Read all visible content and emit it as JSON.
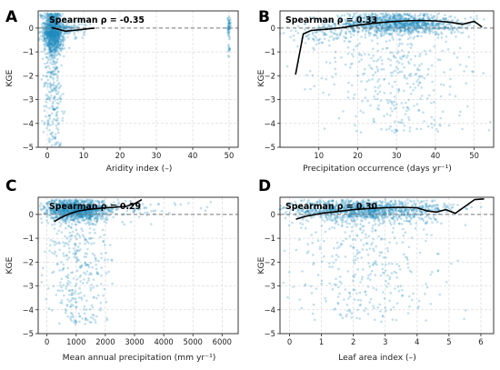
{
  "colors": {
    "points": "#1f8bbf",
    "trend": "#000000",
    "zero_line": "#777777",
    "grid": "#d9d9d9"
  },
  "chart_data": [
    {
      "panel": "A",
      "type": "scatter",
      "annotation": "Spearman ρ = -0.35",
      "xlabel": "Aridity index (–)",
      "ylabel": "KGE",
      "xlim": [
        -2.5,
        52.5
      ],
      "ylim": [
        -5,
        0.72
      ],
      "xticks": [
        0,
        10,
        20,
        30,
        40,
        50
      ],
      "yticks": [
        -5,
        -4,
        -3,
        -2,
        -1,
        0
      ],
      "grid": true,
      "reference_line_y": 0,
      "trend_x": [
        1.2,
        3,
        5,
        7,
        9,
        11,
        13
      ],
      "trend_y": [
        0.02,
        -0.05,
        -0.13,
        -0.1,
        -0.07,
        -0.03,
        0.0
      ],
      "point_clusters": [
        {
          "x_mean": 1.5,
          "x_sd": 1.3,
          "y_center": -0.15,
          "y_spread": 0.9,
          "tail": 4.8,
          "count": 1200
        },
        {
          "x_mean": 5,
          "x_sd": 2.5,
          "y_center": 0.05,
          "y_spread": 0.3,
          "tail": 0.6,
          "count": 140
        },
        {
          "x_mean": 50,
          "x_sd": 0.2,
          "y_center": 0.1,
          "y_spread": 0.4,
          "tail": 1.6,
          "count": 60
        }
      ]
    },
    {
      "panel": "B",
      "type": "scatter",
      "annotation": "Spearman ρ = 0.33",
      "xlabel": "Precipitation occurrence (days yr⁻¹)",
      "ylabel": "KGE",
      "xlim": [
        0,
        55
      ],
      "ylim": [
        -5,
        0.72
      ],
      "xticks": [
        10,
        20,
        30,
        40,
        50
      ],
      "yticks": [
        -5,
        -4,
        -3,
        -2,
        -1,
        0
      ],
      "grid": true,
      "reference_line_y": 0,
      "trend_x": [
        4,
        6,
        8,
        12,
        16,
        20,
        24,
        28,
        32,
        36,
        40,
        44,
        47,
        50,
        52
      ],
      "trend_y": [
        -1.95,
        -0.25,
        -0.1,
        -0.05,
        0.02,
        0.12,
        0.2,
        0.26,
        0.3,
        0.32,
        0.3,
        0.24,
        0.16,
        0.28,
        0.05
      ],
      "point_clusters": [
        {
          "x_mean": 30,
          "x_sd": 8,
          "y_center": 0.2,
          "y_spread": 0.45,
          "tail": 4.6,
          "count": 1400
        },
        {
          "x_mean": 10,
          "x_sd": 4,
          "y_center": -0.2,
          "y_spread": 0.5,
          "tail": 2.5,
          "count": 120
        }
      ]
    },
    {
      "panel": "C",
      "type": "scatter",
      "annotation": "Spearman ρ = 0.29",
      "xlabel": "Mean annual precipitation (mm yr⁻¹)",
      "ylabel": "KGE",
      "xlim": [
        -300,
        6550
      ],
      "ylim": [
        -5,
        0.72
      ],
      "xticks": [
        0,
        1000,
        2000,
        3000,
        4000,
        5000,
        6000
      ],
      "yticks": [
        -5,
        -4,
        -3,
        -2,
        -1,
        0
      ],
      "grid": true,
      "reference_line_y": 0,
      "trend_x": [
        250,
        500,
        800,
        1100,
        1500,
        1900,
        2300,
        2700,
        3000,
        3250
      ],
      "trend_y": [
        -0.3,
        -0.12,
        0.04,
        0.15,
        0.22,
        0.27,
        0.3,
        0.34,
        0.45,
        0.62
      ],
      "point_clusters": [
        {
          "x_mean": 1000,
          "x_sd": 500,
          "y_center": 0.2,
          "y_spread": 0.45,
          "tail": 4.8,
          "count": 1400
        },
        {
          "x_mean": 2600,
          "x_sd": 800,
          "y_center": 0.3,
          "y_spread": 0.3,
          "tail": 0.8,
          "count": 90
        },
        {
          "x_mean": 5000,
          "x_sd": 700,
          "y_center": 0.3,
          "y_spread": 0.3,
          "tail": 0.3,
          "count": 8
        }
      ]
    },
    {
      "panel": "D",
      "type": "scatter",
      "annotation": "Spearman ρ = 0.30",
      "xlabel": "Leaf area index (–)",
      "ylabel": "KGE",
      "xlim": [
        -0.3,
        6.4
      ],
      "ylim": [
        -5,
        0.72
      ],
      "xticks": [
        0,
        1,
        2,
        3,
        4,
        5,
        6
      ],
      "yticks": [
        -5,
        -4,
        -3,
        -2,
        -1,
        0
      ],
      "grid": true,
      "reference_line_y": 0,
      "trend_x": [
        0.2,
        0.5,
        1.0,
        1.5,
        2.0,
        2.5,
        3.0,
        3.5,
        4.0,
        4.3,
        4.6,
        4.9,
        5.2,
        5.8,
        6.1
      ],
      "trend_y": [
        -0.2,
        -0.08,
        0.05,
        0.12,
        0.2,
        0.25,
        0.28,
        0.3,
        0.28,
        0.15,
        0.1,
        0.2,
        0.05,
        0.62,
        0.65
      ],
      "point_clusters": [
        {
          "x_mean": 2.2,
          "x_sd": 1.1,
          "y_center": 0.2,
          "y_spread": 0.45,
          "tail": 4.7,
          "count": 1400
        },
        {
          "x_mean": 4.5,
          "x_sd": 0.6,
          "y_center": 0.3,
          "y_spread": 0.3,
          "tail": 0.8,
          "count": 90
        }
      ]
    }
  ]
}
